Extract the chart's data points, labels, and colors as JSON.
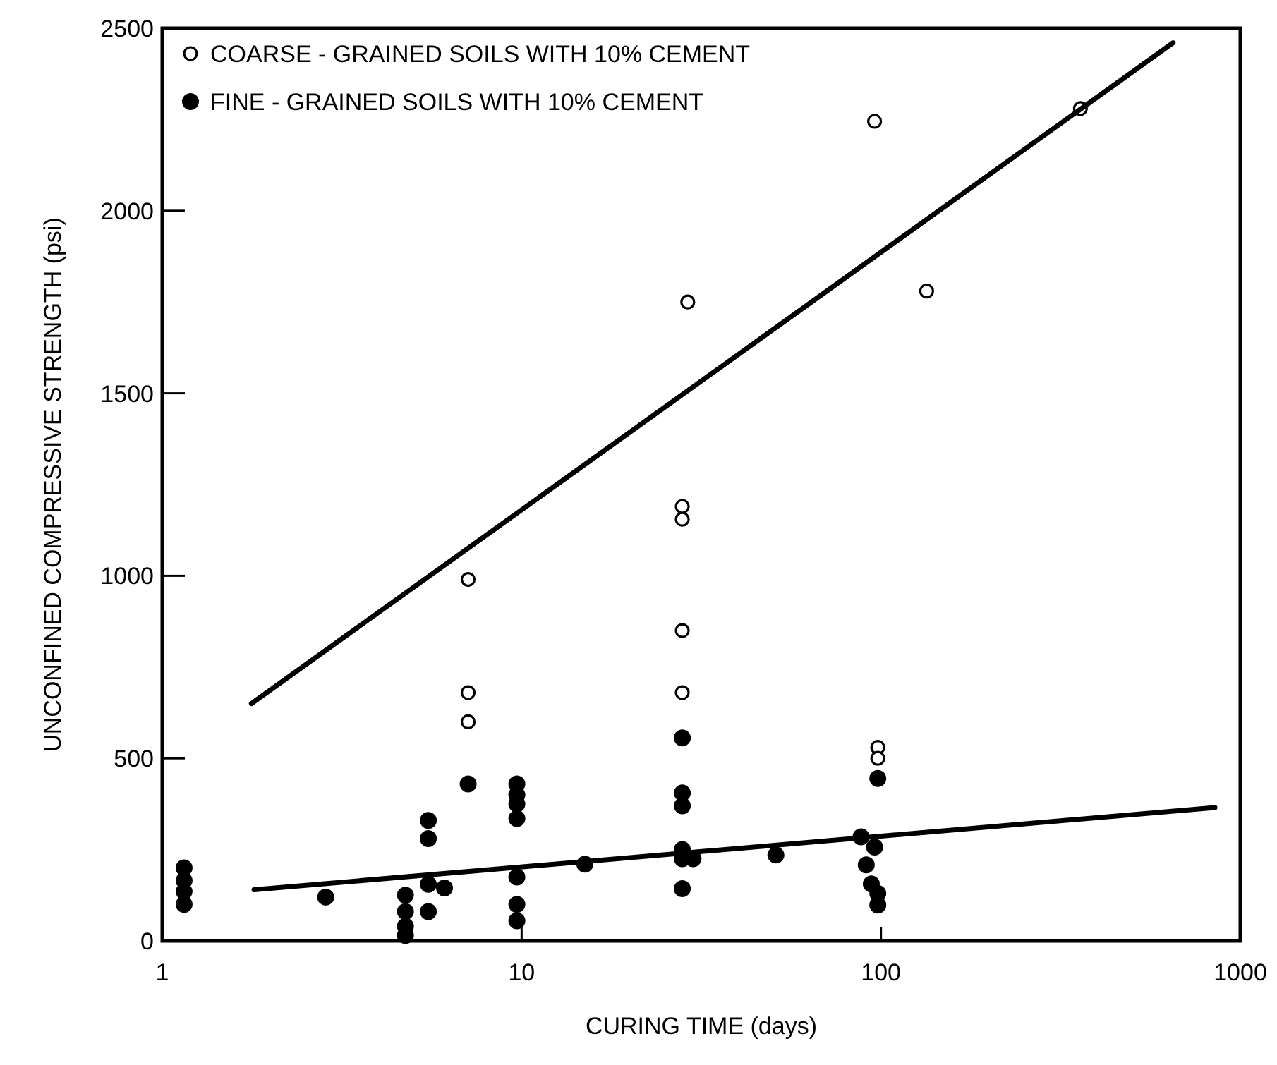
{
  "chart_data": {
    "type": "scatter",
    "xlabel": "CURING TIME (days)",
    "ylabel": "UNCONFINED COMPRESSIVE STRENGTH (psi)",
    "log": "x",
    "xlim": [
      1,
      1000
    ],
    "xticks": [
      1,
      10,
      100,
      1000
    ],
    "ylim": [
      0,
      2500
    ],
    "yticks": [
      0,
      500,
      1000,
      1500,
      2000,
      2500
    ],
    "grid": false,
    "legend": "top left",
    "series": [
      {
        "name": "COARSE - GRAINED SOILS WITH 10% CEMENT",
        "color": "#000000",
        "marker": "circle-open",
        "x": [
          7.1,
          7.1,
          7.1,
          28,
          28,
          28,
          28,
          29,
          98,
          98,
          96,
          134,
          359
        ],
        "values": [
          990,
          680,
          600,
          1190,
          1155,
          850,
          680,
          1750,
          530,
          500,
          2245,
          1780,
          2280
        ]
      },
      {
        "name": "FINE - GRAINED SOILS WITH 10% CEMENT",
        "color": "#000000",
        "marker": "circle",
        "x": [
          1.15,
          1.15,
          1.15,
          1.15,
          2.85,
          4.75,
          4.75,
          4.75,
          4.75,
          5.5,
          5.5,
          5.5,
          5.5,
          6.1,
          7.1,
          9.7,
          9.7,
          9.7,
          9.7,
          9.7,
          9.7,
          9.7,
          15,
          28,
          28,
          28,
          28,
          28,
          28,
          30,
          51,
          98,
          88,
          96,
          91,
          94,
          98,
          98
        ],
        "values": [
          200,
          165,
          135,
          100,
          120,
          125,
          80,
          40,
          15,
          330,
          280,
          155,
          80,
          145,
          430,
          430,
          400,
          375,
          335,
          175,
          100,
          55,
          210,
          556,
          405,
          370,
          250,
          225,
          143,
          225,
          235,
          445,
          285,
          257,
          208,
          156,
          130,
          98
        ]
      },
      {
        "type": "line",
        "color": "#000000",
        "x": [
          1.77,
          650
        ],
        "values": [
          650,
          2460
        ]
      },
      {
        "type": "line",
        "color": "#000000",
        "x": [
          1.8,
          850
        ],
        "values": [
          140,
          365
        ]
      }
    ]
  }
}
